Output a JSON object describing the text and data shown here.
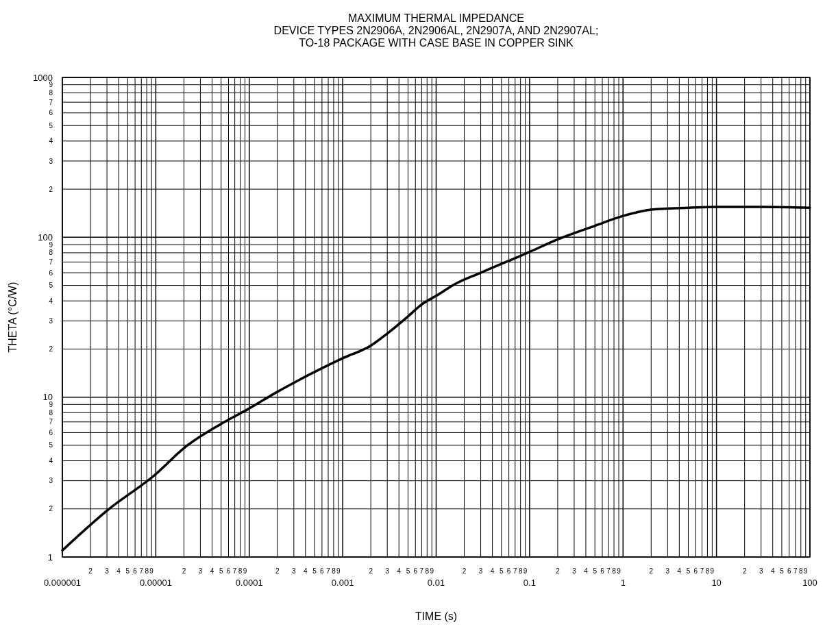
{
  "chart_data": {
    "type": "line",
    "title": "MAXIMUM THERMAL IMPEDANCE\nDEVICE TYPES 2N2906A, 2N2906AL, 2N2907A, AND 2N2907AL;\nTO-18 PACKAGE WITH CASE BASE IN COPPER SINK",
    "xlabel": "TIME (s)",
    "ylabel": "THETA (°C/W)",
    "log": "xy",
    "grid": true,
    "marker": "none",
    "line_style": "solid",
    "xlim": [
      1e-06,
      100
    ],
    "ylim": [
      1,
      1000
    ],
    "xticks": [
      {
        "value": 1e-06,
        "label": "0.000001"
      },
      {
        "value": 2e-06,
        "label": null
      },
      {
        "value": 3e-06,
        "label": null
      },
      {
        "value": 4e-06,
        "label": null
      },
      {
        "value": 5e-06,
        "label": null
      },
      {
        "value": 6e-06,
        "label": null
      },
      {
        "value": 7e-06,
        "label": null
      },
      {
        "value": 8e-06,
        "label": null
      },
      {
        "value": 9e-06,
        "label": null
      },
      {
        "value": 1e-05,
        "label": "0.00001"
      },
      {
        "value": 2e-05,
        "label": null
      },
      {
        "value": 3e-05,
        "label": null
      },
      {
        "value": 4e-05,
        "label": null
      },
      {
        "value": 5e-05,
        "label": null
      },
      {
        "value": 6e-05,
        "label": null
      },
      {
        "value": 7e-05,
        "label": null
      },
      {
        "value": 8e-05,
        "label": null
      },
      {
        "value": 9e-05,
        "label": null
      },
      {
        "value": 0.0001,
        "label": "0.0001"
      },
      {
        "value": 0.0002,
        "label": null
      },
      {
        "value": 0.0003,
        "label": null
      },
      {
        "value": 0.0004,
        "label": null
      },
      {
        "value": 0.0005,
        "label": null
      },
      {
        "value": 0.0006,
        "label": null
      },
      {
        "value": 0.0007,
        "label": null
      },
      {
        "value": 0.0008,
        "label": null
      },
      {
        "value": 0.0009,
        "label": null
      },
      {
        "value": 0.001,
        "label": "0.001"
      },
      {
        "value": 0.002,
        "label": null
      },
      {
        "value": 0.003,
        "label": null
      },
      {
        "value": 0.004,
        "label": null
      },
      {
        "value": 0.005,
        "label": null
      },
      {
        "value": 0.006,
        "label": null
      },
      {
        "value": 0.007,
        "label": null
      },
      {
        "value": 0.008,
        "label": null
      },
      {
        "value": 0.009,
        "label": null
      },
      {
        "value": 0.01,
        "label": "0.01"
      },
      {
        "value": 0.02,
        "label": null
      },
      {
        "value": 0.03,
        "label": null
      },
      {
        "value": 0.04,
        "label": null
      },
      {
        "value": 0.05,
        "label": null
      },
      {
        "value": 0.06,
        "label": null
      },
      {
        "value": 0.07,
        "label": null
      },
      {
        "value": 0.08,
        "label": null
      },
      {
        "value": 0.09,
        "label": null
      },
      {
        "value": 0.1,
        "label": "0.1"
      },
      {
        "value": 0.2,
        "label": null
      },
      {
        "value": 0.3,
        "label": null
      },
      {
        "value": 0.4,
        "label": null
      },
      {
        "value": 0.5,
        "label": null
      },
      {
        "value": 0.6,
        "label": null
      },
      {
        "value": 0.7,
        "label": null
      },
      {
        "value": 0.8,
        "label": null
      },
      {
        "value": 0.9,
        "label": null
      },
      {
        "value": 1,
        "label": "1"
      },
      {
        "value": 2,
        "label": null
      },
      {
        "value": 3,
        "label": null
      },
      {
        "value": 4,
        "label": null
      },
      {
        "value": 5,
        "label": null
      },
      {
        "value": 6,
        "label": null
      },
      {
        "value": 7,
        "label": null
      },
      {
        "value": 8,
        "label": null
      },
      {
        "value": 9,
        "label": null
      },
      {
        "value": 10,
        "label": "10"
      },
      {
        "value": 20,
        "label": null
      },
      {
        "value": 30,
        "label": null
      },
      {
        "value": 40,
        "label": null
      },
      {
        "value": 50,
        "label": null
      },
      {
        "value": 60,
        "label": null
      },
      {
        "value": 70,
        "label": null
      },
      {
        "value": 80,
        "label": null
      },
      {
        "value": 90,
        "label": null
      },
      {
        "value": 100,
        "label": "100"
      }
    ],
    "yticks": [
      1,
      {
        "value": 2,
        "label": null
      },
      {
        "value": 3,
        "label": null
      },
      {
        "value": 4,
        "label": null
      },
      {
        "value": 5,
        "label": null
      },
      {
        "value": 6,
        "label": null
      },
      {
        "value": 7,
        "label": null
      },
      {
        "value": 8,
        "label": null
      },
      {
        "value": 9,
        "label": null
      },
      10,
      {
        "value": 20,
        "label": null
      },
      {
        "value": 30,
        "label": null
      },
      {
        "value": 40,
        "label": null
      },
      {
        "value": 50,
        "label": null
      },
      {
        "value": 60,
        "label": null
      },
      {
        "value": 70,
        "label": null
      },
      {
        "value": 80,
        "label": null
      },
      {
        "value": 90,
        "label": null
      },
      100,
      {
        "value": 200,
        "label": null
      },
      {
        "value": 300,
        "label": null
      },
      {
        "value": 400,
        "label": null
      },
      {
        "value": 500,
        "label": null
      },
      {
        "value": 600,
        "label": null
      },
      {
        "value": 700,
        "label": null
      },
      {
        "value": 800,
        "label": null
      },
      {
        "value": 900,
        "label": null
      },
      1000
    ],
    "annotations": [
      "2",
      "3",
      "4",
      "5",
      "6",
      "7",
      "8",
      "9",
      "2",
      "3",
      "4",
      "5",
      "6",
      "7",
      "8",
      "9",
      "2",
      "3",
      "4",
      "5",
      "6",
      "7",
      "8",
      "9",
      "2",
      "3",
      "4",
      "5",
      "6",
      "7",
      "8",
      "9",
      "2",
      "3",
      "4",
      "5",
      "6",
      "7",
      "8",
      "9",
      "2",
      "3",
      "4",
      "5",
      "6",
      "7",
      "8",
      "9",
      "2",
      "3",
      "4",
      "5",
      "6",
      "7",
      "8",
      "9",
      "2",
      "3",
      "4",
      "5",
      "6",
      "7",
      "8",
      "9",
      "2",
      "3",
      "4",
      "5",
      "6",
      "7",
      "8",
      "9",
      "2",
      "3",
      "4",
      "5",
      "6",
      "7",
      "8",
      "9",
      "2",
      "3",
      "4",
      "5",
      "6",
      "7",
      "8",
      "9"
    ],
    "series": [
      {
        "color": "#000000",
        "x": [
          1e-06,
          3e-06,
          1e-05,
          2e-05,
          5e-05,
          0.0001,
          0.0002,
          0.0003,
          0.001,
          0.002,
          0.003,
          0.005,
          0.007,
          0.01,
          0.016,
          0.03,
          0.1,
          0.2,
          0.5,
          1,
          2,
          5,
          10,
          30,
          100
        ],
        "values": [
          1.1,
          1.95,
          3.3,
          4.8,
          6.8,
          8.5,
          10.8,
          12.3,
          17.5,
          21,
          25,
          32,
          38,
          43,
          51,
          60,
          81,
          97,
          118,
          136,
          149,
          153,
          155,
          155,
          153
        ]
      }
    ]
  }
}
